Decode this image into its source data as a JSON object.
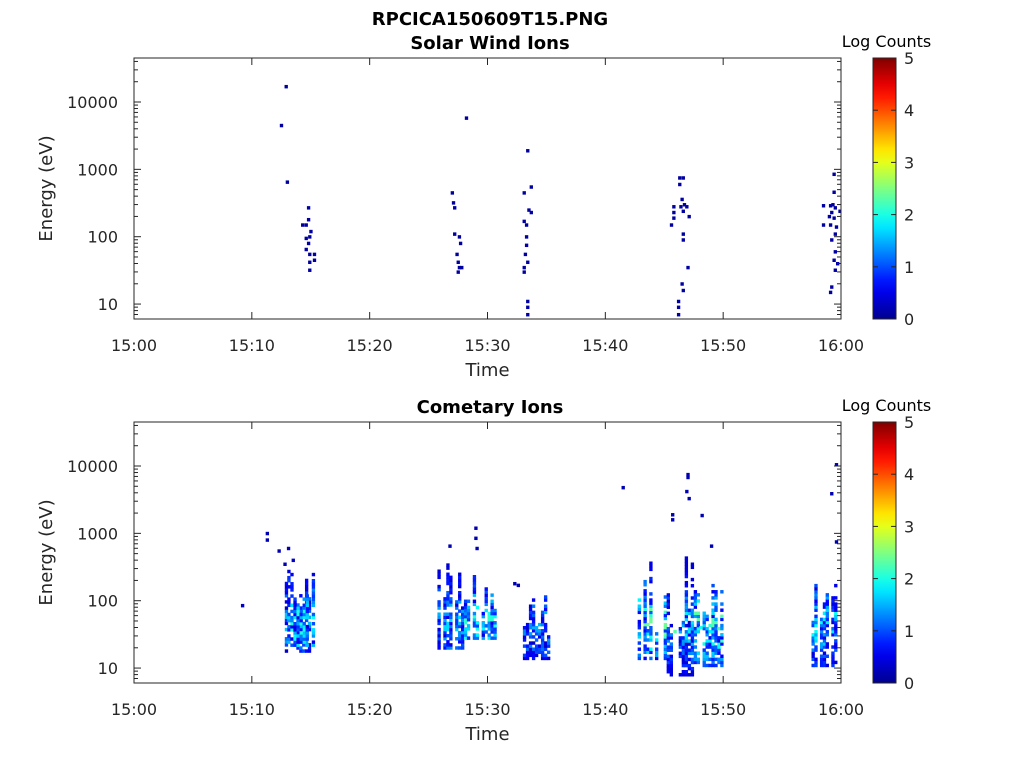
{
  "figure": {
    "title": "RPCICA150609T15.PNG"
  },
  "colormap": {
    "name": "jet",
    "stops": [
      "#00008f",
      "#0000ff",
      "#00ffff",
      "#ffff00",
      "#ff0000",
      "#800000"
    ]
  },
  "chart_data": [
    {
      "type": "heatmap",
      "title": "Solar Wind Ions",
      "xlabel": "Time",
      "ylabel": "Energy (eV)",
      "x_scale": "time",
      "y_scale": "log",
      "xlim": [
        "15:00",
        "16:00"
      ],
      "ylim": [
        6,
        45000
      ],
      "xticks": [
        "15:00",
        "15:10",
        "15:20",
        "15:30",
        "15:40",
        "15:50",
        "16:00"
      ],
      "yticks": [
        10,
        100,
        1000,
        10000
      ],
      "ytick_labels": [
        "10",
        "100",
        "1000",
        "10000"
      ],
      "colorbar": {
        "label": "Log Counts",
        "range": [
          0,
          5
        ],
        "ticks": [
          "0",
          "1",
          "2",
          "3",
          "4",
          "5"
        ]
      },
      "points": [
        {
          "t": "15:12.5",
          "e": 4500,
          "v": 0.1
        },
        {
          "t": "15:12.9",
          "e": 17000,
          "v": 0.1
        },
        {
          "t": "15:13.0",
          "e": 650,
          "v": 0.1
        },
        {
          "t": "15:14.3",
          "e": 150,
          "v": 0.1
        },
        {
          "t": "15:14.6",
          "e": 150,
          "v": 0.1
        },
        {
          "t": "15:14.8",
          "e": 270,
          "v": 0.1
        },
        {
          "t": "15:14.8",
          "e": 180,
          "v": 0.1
        },
        {
          "t": "15:14.6",
          "e": 95,
          "v": 0.1
        },
        {
          "t": "15:14.8",
          "e": 80,
          "v": 0.1
        },
        {
          "t": "15:14.6",
          "e": 65,
          "v": 0.1
        },
        {
          "t": "15:14.9",
          "e": 100,
          "v": 0.1
        },
        {
          "t": "15:14.9",
          "e": 55,
          "v": 0.1
        },
        {
          "t": "15:14.9",
          "e": 42,
          "v": 0.1
        },
        {
          "t": "15:14.9",
          "e": 32,
          "v": 0.1
        },
        {
          "t": "15:15.0",
          "e": 120,
          "v": 0.1
        },
        {
          "t": "15:15.3",
          "e": 55,
          "v": 0.1
        },
        {
          "t": "15:15.3",
          "e": 45,
          "v": 0.1
        },
        {
          "t": "15:27.0",
          "e": 450,
          "v": 0.1
        },
        {
          "t": "15:27.1",
          "e": 320,
          "v": 0.1
        },
        {
          "t": "15:27.2",
          "e": 270,
          "v": 0.1
        },
        {
          "t": "15:27.2",
          "e": 110,
          "v": 0.1
        },
        {
          "t": "15:27.6",
          "e": 100,
          "v": 0.1
        },
        {
          "t": "15:27.7",
          "e": 80,
          "v": 0.1
        },
        {
          "t": "15:27.4",
          "e": 55,
          "v": 0.1
        },
        {
          "t": "15:27.5",
          "e": 42,
          "v": 0.1
        },
        {
          "t": "15:27.6",
          "e": 35,
          "v": 0.1
        },
        {
          "t": "15:27.5",
          "e": 30,
          "v": 0.1
        },
        {
          "t": "15:27.8",
          "e": 35,
          "v": 0.1
        },
        {
          "t": "15:28.2",
          "e": 5800,
          "v": 0.1
        },
        {
          "t": "15:33.1",
          "e": 450,
          "v": 0.1
        },
        {
          "t": "15:33.1",
          "e": 170,
          "v": 0.1
        },
        {
          "t": "15:33.3",
          "e": 150,
          "v": 0.1
        },
        {
          "t": "15:33.3",
          "e": 100,
          "v": 0.1
        },
        {
          "t": "15:33.3",
          "e": 75,
          "v": 0.1
        },
        {
          "t": "15:33.2",
          "e": 55,
          "v": 0.1
        },
        {
          "t": "15:33.4",
          "e": 42,
          "v": 0.1
        },
        {
          "t": "15:33.1",
          "e": 35,
          "v": 0.1
        },
        {
          "t": "15:33.1",
          "e": 30,
          "v": 0.1
        },
        {
          "t": "15:33.4",
          "e": 1900,
          "v": 0.1
        },
        {
          "t": "15:33.7",
          "e": 550,
          "v": 0.1
        },
        {
          "t": "15:33.5",
          "e": 250,
          "v": 0.1
        },
        {
          "t": "15:33.7",
          "e": 230,
          "v": 0.1
        },
        {
          "t": "15:33.4",
          "e": 11,
          "v": 0.1
        },
        {
          "t": "15:33.4",
          "e": 9,
          "v": 0.1
        },
        {
          "t": "15:33.4",
          "e": 7,
          "v": 0.1
        },
        {
          "t": "15:45.8",
          "e": 280,
          "v": 0.1
        },
        {
          "t": "15:45.8",
          "e": 230,
          "v": 0.1
        },
        {
          "t": "15:45.8",
          "e": 190,
          "v": 0.1
        },
        {
          "t": "15:45.6",
          "e": 150,
          "v": 0.1
        },
        {
          "t": "15:46.3",
          "e": 750,
          "v": 0.1
        },
        {
          "t": "15:46.6",
          "e": 750,
          "v": 0.1
        },
        {
          "t": "15:46.3",
          "e": 600,
          "v": 0.1
        },
        {
          "t": "15:46.5",
          "e": 360,
          "v": 0.1
        },
        {
          "t": "15:46.4",
          "e": 280,
          "v": 0.1
        },
        {
          "t": "15:46.7",
          "e": 300,
          "v": 0.1
        },
        {
          "t": "15:46.6",
          "e": 240,
          "v": 0.1
        },
        {
          "t": "15:46.9",
          "e": 280,
          "v": 0.1
        },
        {
          "t": "15:47.1",
          "e": 200,
          "v": 0.1
        },
        {
          "t": "15:46.6",
          "e": 110,
          "v": 0.1
        },
        {
          "t": "15:46.6",
          "e": 90,
          "v": 0.1
        },
        {
          "t": "15:47.0",
          "e": 35,
          "v": 0.1
        },
        {
          "t": "15:46.5",
          "e": 20,
          "v": 0.1
        },
        {
          "t": "15:46.6",
          "e": 16,
          "v": 0.1
        },
        {
          "t": "15:46.2",
          "e": 11,
          "v": 0.1
        },
        {
          "t": "15:46.2",
          "e": 9,
          "v": 0.1
        },
        {
          "t": "15:46.2",
          "e": 7,
          "v": 0.1
        },
        {
          "t": "15:58.5",
          "e": 290,
          "v": 0.1
        },
        {
          "t": "15:59.1",
          "e": 290,
          "v": 0.1
        },
        {
          "t": "15:59.3",
          "e": 300,
          "v": 0.1
        },
        {
          "t": "15:59.5",
          "e": 270,
          "v": 0.1
        },
        {
          "t": "15:59.2",
          "e": 230,
          "v": 0.1
        },
        {
          "t": "15:59.4",
          "e": 190,
          "v": 0.1
        },
        {
          "t": "15:59.0",
          "e": 200,
          "v": 0.1
        },
        {
          "t": "15:58.5",
          "e": 150,
          "v": 0.1
        },
        {
          "t": "15:59.1",
          "e": 150,
          "v": 0.1
        },
        {
          "t": "15:59.6",
          "e": 140,
          "v": 0.1
        },
        {
          "t": "15:59.9",
          "e": 240,
          "v": 0.1
        },
        {
          "t": "15:59.4",
          "e": 850,
          "v": 0.1
        },
        {
          "t": "15:59.4",
          "e": 460,
          "v": 0.1
        },
        {
          "t": "15:59.5",
          "e": 110,
          "v": 0.1
        },
        {
          "t": "15:59.2",
          "e": 90,
          "v": 0.1
        },
        {
          "t": "15:59.5",
          "e": 60,
          "v": 0.1
        },
        {
          "t": "15:59.4",
          "e": 45,
          "v": 0.1
        },
        {
          "t": "15:59.7",
          "e": 40,
          "v": 0.1
        },
        {
          "t": "15:59.5",
          "e": 32,
          "v": 0.1
        },
        {
          "t": "15:59.1",
          "e": 15,
          "v": 0.1
        },
        {
          "t": "15:59.2",
          "e": 18,
          "v": 0.1
        }
      ]
    },
    {
      "type": "heatmap",
      "title": "Cometary Ions",
      "xlabel": "Time",
      "ylabel": "Energy (eV)",
      "x_scale": "time",
      "y_scale": "log",
      "xlim": [
        "15:00",
        "16:00"
      ],
      "ylim": [
        6,
        45000
      ],
      "xticks": [
        "15:00",
        "15:10",
        "15:20",
        "15:30",
        "15:40",
        "15:50",
        "16:00"
      ],
      "yticks": [
        10,
        100,
        1000,
        10000
      ],
      "ytick_labels": [
        "10",
        "100",
        "1000",
        "10000"
      ],
      "colorbar": {
        "label": "Log Counts",
        "range": [
          0,
          5
        ],
        "ticks": [
          "0",
          "1",
          "2",
          "3",
          "4",
          "5"
        ]
      },
      "bursts": [
        {
          "t0": 15.0,
          "t1": 12.8,
          "e0": 18,
          "e1": 350,
          "vmax": 1.6
        },
        {
          "t0": 13.0,
          "t1": 15.6,
          "e0": 22,
          "e1": 320,
          "vmax": 2.0
        },
        {
          "t0": 25.5,
          "t1": 28.0,
          "e0": 20,
          "e1": 400,
          "vmax": 1.7
        },
        {
          "t0": 28.0,
          "t1": 31.0,
          "e0": 28,
          "e1": 330,
          "vmax": 2.1
        },
        {
          "t0": 33.0,
          "t1": 35.3,
          "e0": 14,
          "e1": 250,
          "vmax": 1.5
        },
        {
          "t0": 42.5,
          "t1": 45.2,
          "e0": 14,
          "e1": 420,
          "vmax": 2.4
        },
        {
          "t0": 45.2,
          "t1": 47.5,
          "e0": 8,
          "e1": 650,
          "vmax": 1.8
        },
        {
          "t0": 47.5,
          "t1": 50.5,
          "e0": 11,
          "e1": 400,
          "vmax": 2.3
        },
        {
          "t0": 57.5,
          "t1": 59.9,
          "e0": 11,
          "e1": 380,
          "vmax": 1.9
        }
      ],
      "points": [
        {
          "t": "15:09.2",
          "e": 85,
          "v": 0.3
        },
        {
          "t": "15:11.3",
          "e": 1000,
          "v": 0.2
        },
        {
          "t": "15:11.3",
          "e": 800,
          "v": 0.2
        },
        {
          "t": "15:12.3",
          "e": 550,
          "v": 0.2
        },
        {
          "t": "15:12.8",
          "e": 350,
          "v": 0.2
        },
        {
          "t": "15:13.1",
          "e": 600,
          "v": 0.2
        },
        {
          "t": "15:13.5",
          "e": 400,
          "v": 0.3
        },
        {
          "t": "15:26.8",
          "e": 650,
          "v": 0.2
        },
        {
          "t": "15:29.0",
          "e": 1200,
          "v": 0.2
        },
        {
          "t": "15:29.0",
          "e": 850,
          "v": 0.2
        },
        {
          "t": "15:29.1",
          "e": 600,
          "v": 0.2
        },
        {
          "t": "15:32.3",
          "e": 180,
          "v": 0.2
        },
        {
          "t": "15:32.6",
          "e": 170,
          "v": 0.2
        },
        {
          "t": "15:41.5",
          "e": 4800,
          "v": 0.2
        },
        {
          "t": "15:45.7",
          "e": 1900,
          "v": 0.2
        },
        {
          "t": "15:45.7",
          "e": 1600,
          "v": 0.2
        },
        {
          "t": "15:47.0",
          "e": 7500,
          "v": 0.2
        },
        {
          "t": "15:47.0",
          "e": 6800,
          "v": 0.2
        },
        {
          "t": "15:47.1",
          "e": 3300,
          "v": 0.2
        },
        {
          "t": "15:48.2",
          "e": 1850,
          "v": 0.2
        },
        {
          "t": "15:46.9",
          "e": 4200,
          "v": 0.2
        },
        {
          "t": "15:49.0",
          "e": 650,
          "v": 0.2
        },
        {
          "t": "15:59.6",
          "e": 10500,
          "v": 0.2
        },
        {
          "t": "15:59.2",
          "e": 3900,
          "v": 0.2
        },
        {
          "t": "15:59.6",
          "e": 750,
          "v": 0.2
        },
        {
          "t": "15:45.9",
          "e": 35,
          "v": 2.3
        },
        {
          "t": "15:48.1",
          "e": 40,
          "v": 2.0
        }
      ]
    }
  ]
}
